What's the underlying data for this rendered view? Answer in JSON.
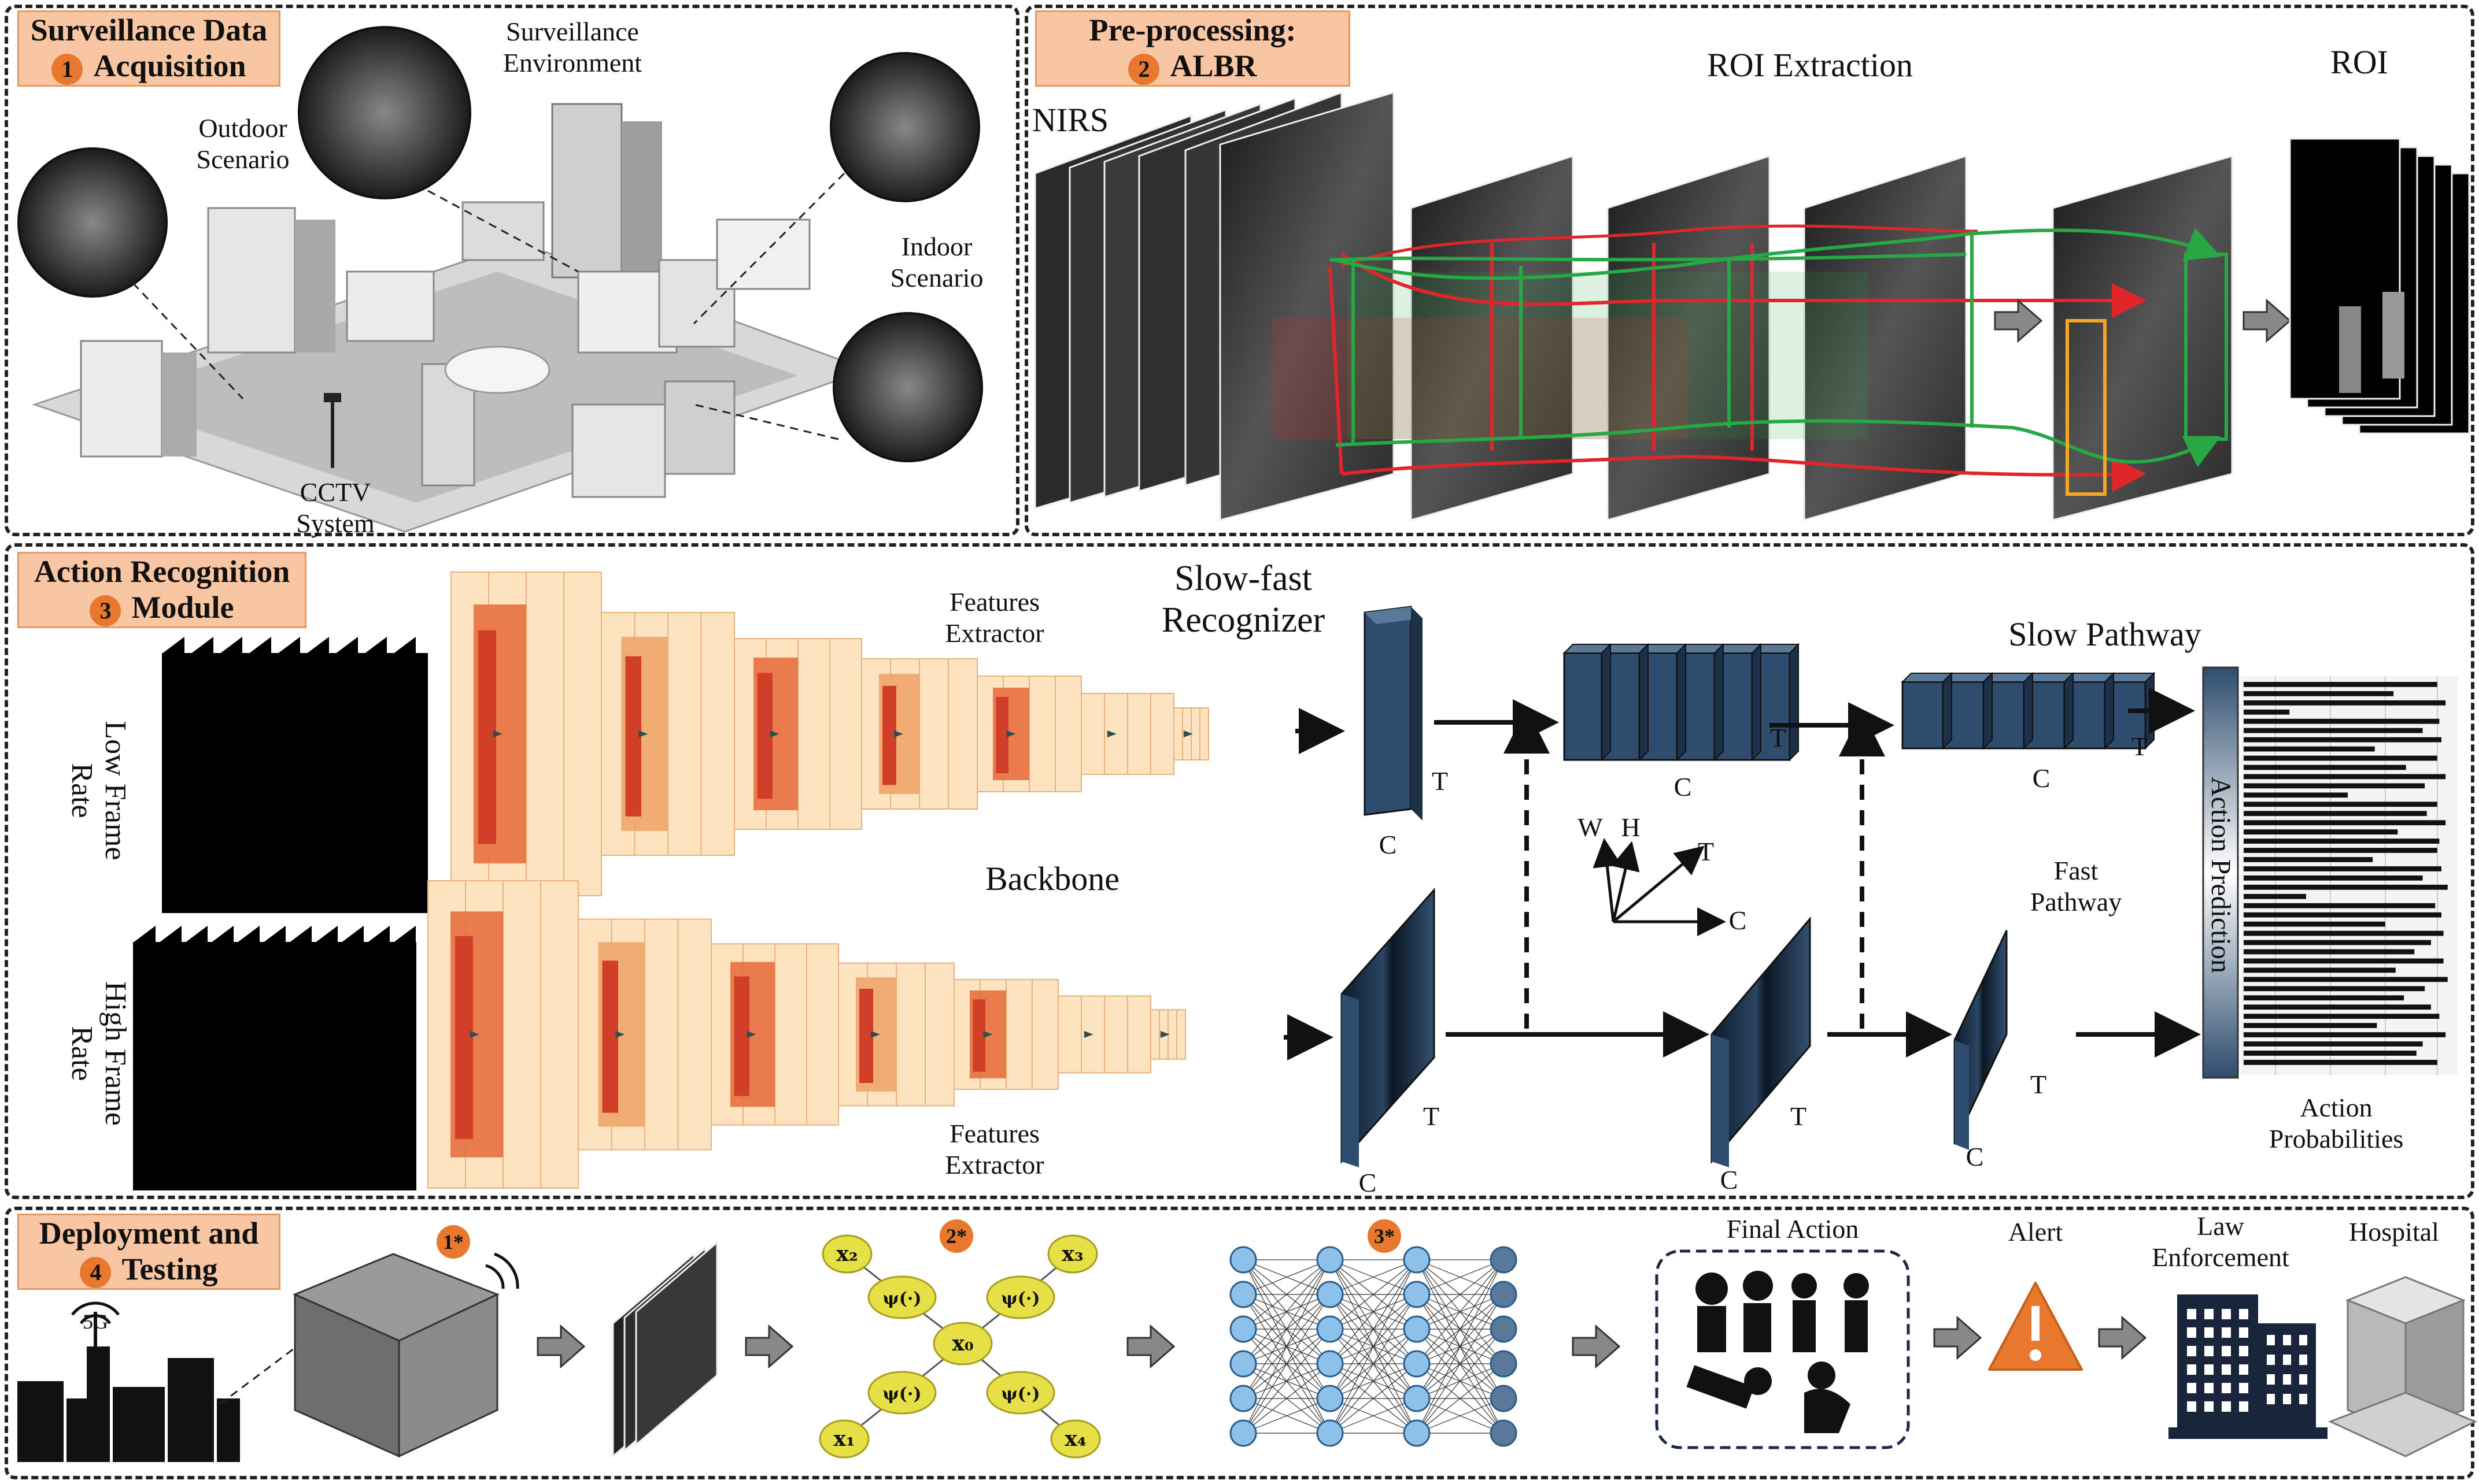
{
  "sections": {
    "s1": {
      "num": "1",
      "line1": "Surveillance Data",
      "line2": "Acquisition"
    },
    "s2": {
      "num": "2",
      "line1": "Pre-processing:",
      "line2": "ALBR"
    },
    "s3": {
      "num": "3",
      "line1": "Action Recognition",
      "line2": "Module"
    },
    "s4": {
      "num": "4",
      "line1": "Deployment and",
      "line2": "Testing"
    }
  },
  "acquisition": {
    "surveillance_env": [
      "Surveillance",
      "Environment"
    ],
    "outdoor": [
      "Outdoor",
      "Scenario"
    ],
    "indoor": [
      "Indoor",
      "Scenario"
    ],
    "cctv": [
      "CCTV",
      "System"
    ]
  },
  "preprocessing": {
    "nirs": "NIRS",
    "roi_extraction": "ROI Extraction",
    "roi": "ROI"
  },
  "recognition": {
    "slowfast": [
      "Slow-fast",
      "Recognizer"
    ],
    "features_extractor_top": [
      "Features",
      "Extractor"
    ],
    "features_extractor_bottom": [
      "Features",
      "Extractor"
    ],
    "backbone": "Backbone",
    "low_frame_rate": [
      "Low Frame",
      "Rate"
    ],
    "high_frame_rate": [
      "High Frame",
      "Rate"
    ],
    "slow_pathway": "Slow Pathway",
    "fast_pathway": [
      "Fast",
      "Pathway"
    ],
    "action_prediction": "Action Prediction",
    "action_probabilities": [
      "Action",
      "Probabilities"
    ],
    "axis": {
      "w": "W",
      "h": "H",
      "t": "T",
      "c": "C"
    },
    "dim_t": "T",
    "dim_c": "C"
  },
  "deployment": {
    "badges": [
      "1*",
      "2*",
      "3*"
    ],
    "network_label": "5G",
    "final_action": "Final Action",
    "alert": "Alert",
    "law_enforcement": [
      "Law",
      "Enforcement"
    ],
    "hospital": "Hospital",
    "graph_nodes": {
      "x0": "x₀",
      "x1": "x₁",
      "x2": "x₂",
      "x3": "x₃",
      "x4": "x₄",
      "psi": "ψ(·)"
    }
  },
  "prob_bars": [
    0.93,
    0.72,
    0.97,
    0.22,
    0.94,
    0.86,
    0.95,
    0.63,
    0.93,
    0.78,
    0.97,
    0.87,
    0.5,
    0.93,
    0.88,
    0.97,
    0.74,
    0.94,
    0.93,
    0.62,
    0.95,
    0.86,
    0.98,
    0.3,
    0.92,
    0.95,
    0.68,
    0.96,
    0.9,
    0.82,
    0.96,
    0.73,
    0.98,
    0.87,
    0.77,
    0.9,
    0.94,
    0.64,
    0.97,
    0.86,
    0.83,
    0.93
  ],
  "colors": {
    "panel_border": "#222222",
    "tag_fill": "#f9c6a3",
    "accent_orange": "#e8782e",
    "roi_green": "#27a844",
    "roi_red": "#e0262b",
    "tensor_blue": "#2e4d6e"
  }
}
